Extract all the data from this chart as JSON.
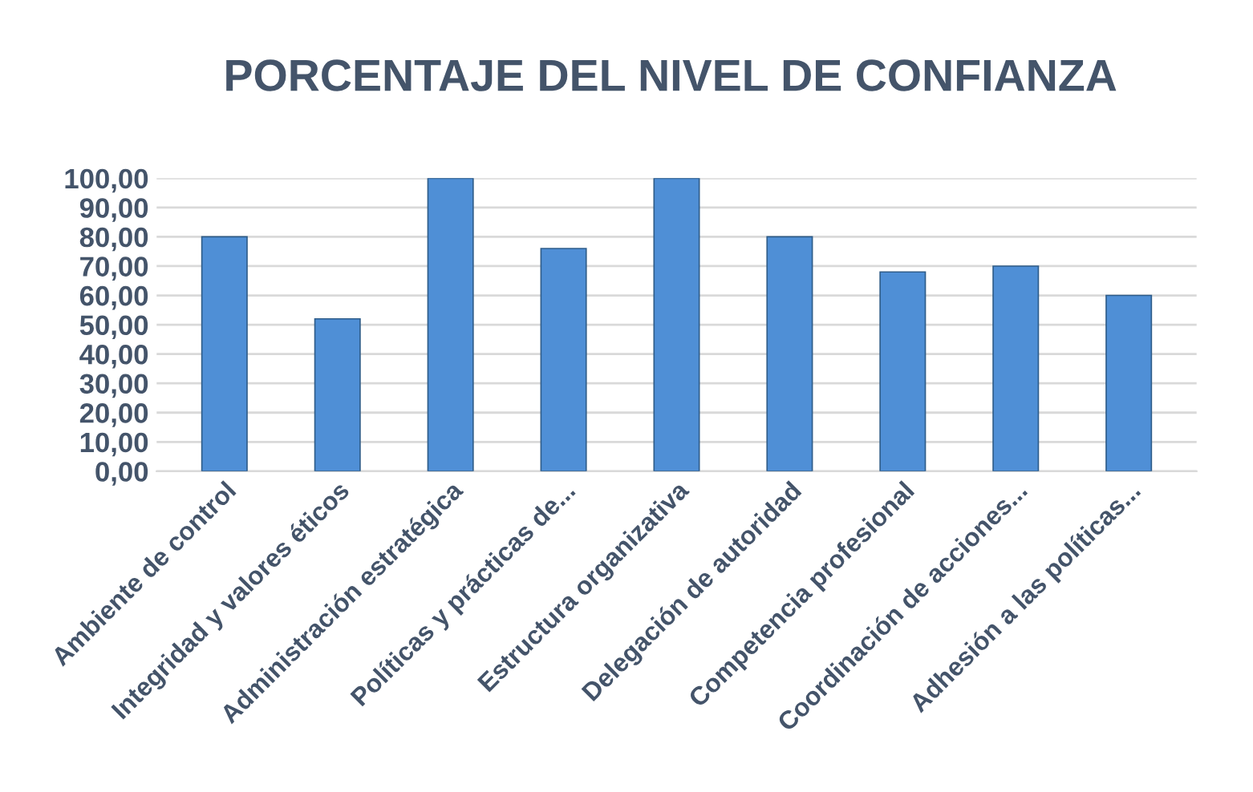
{
  "chart_data": {
    "type": "bar",
    "title": "PORCENTAJE DEL NIVEL DE CONFIANZA",
    "categories": [
      "Ambiente de control",
      "Integridad y valores éticos",
      "Administración estratégica",
      "Políticas y prácticas de...",
      "Estructura organizativa",
      "Delegación de autoridad",
      "Competencia profesional",
      "Coordinación de acciones...",
      "Adhesión a las políticas..."
    ],
    "values": [
      80,
      52,
      100,
      76,
      100,
      80,
      68,
      70,
      60
    ],
    "color": "#4f8fd6",
    "ylim": [
      0,
      100
    ],
    "yticks": [
      {
        "value": 0,
        "label": "0,00"
      },
      {
        "value": 10,
        "label": "10,00"
      },
      {
        "value": 20,
        "label": "20,00"
      },
      {
        "value": 30,
        "label": "30,00"
      },
      {
        "value": 40,
        "label": "40,00"
      },
      {
        "value": 50,
        "label": "50,00"
      },
      {
        "value": 60,
        "label": "60,00"
      },
      {
        "value": 70,
        "label": "70,00"
      },
      {
        "value": 80,
        "label": "80,00"
      },
      {
        "value": 90,
        "label": "90,00"
      },
      {
        "value": 100,
        "label": "100,00"
      }
    ],
    "grid": "y",
    "legend": false
  }
}
